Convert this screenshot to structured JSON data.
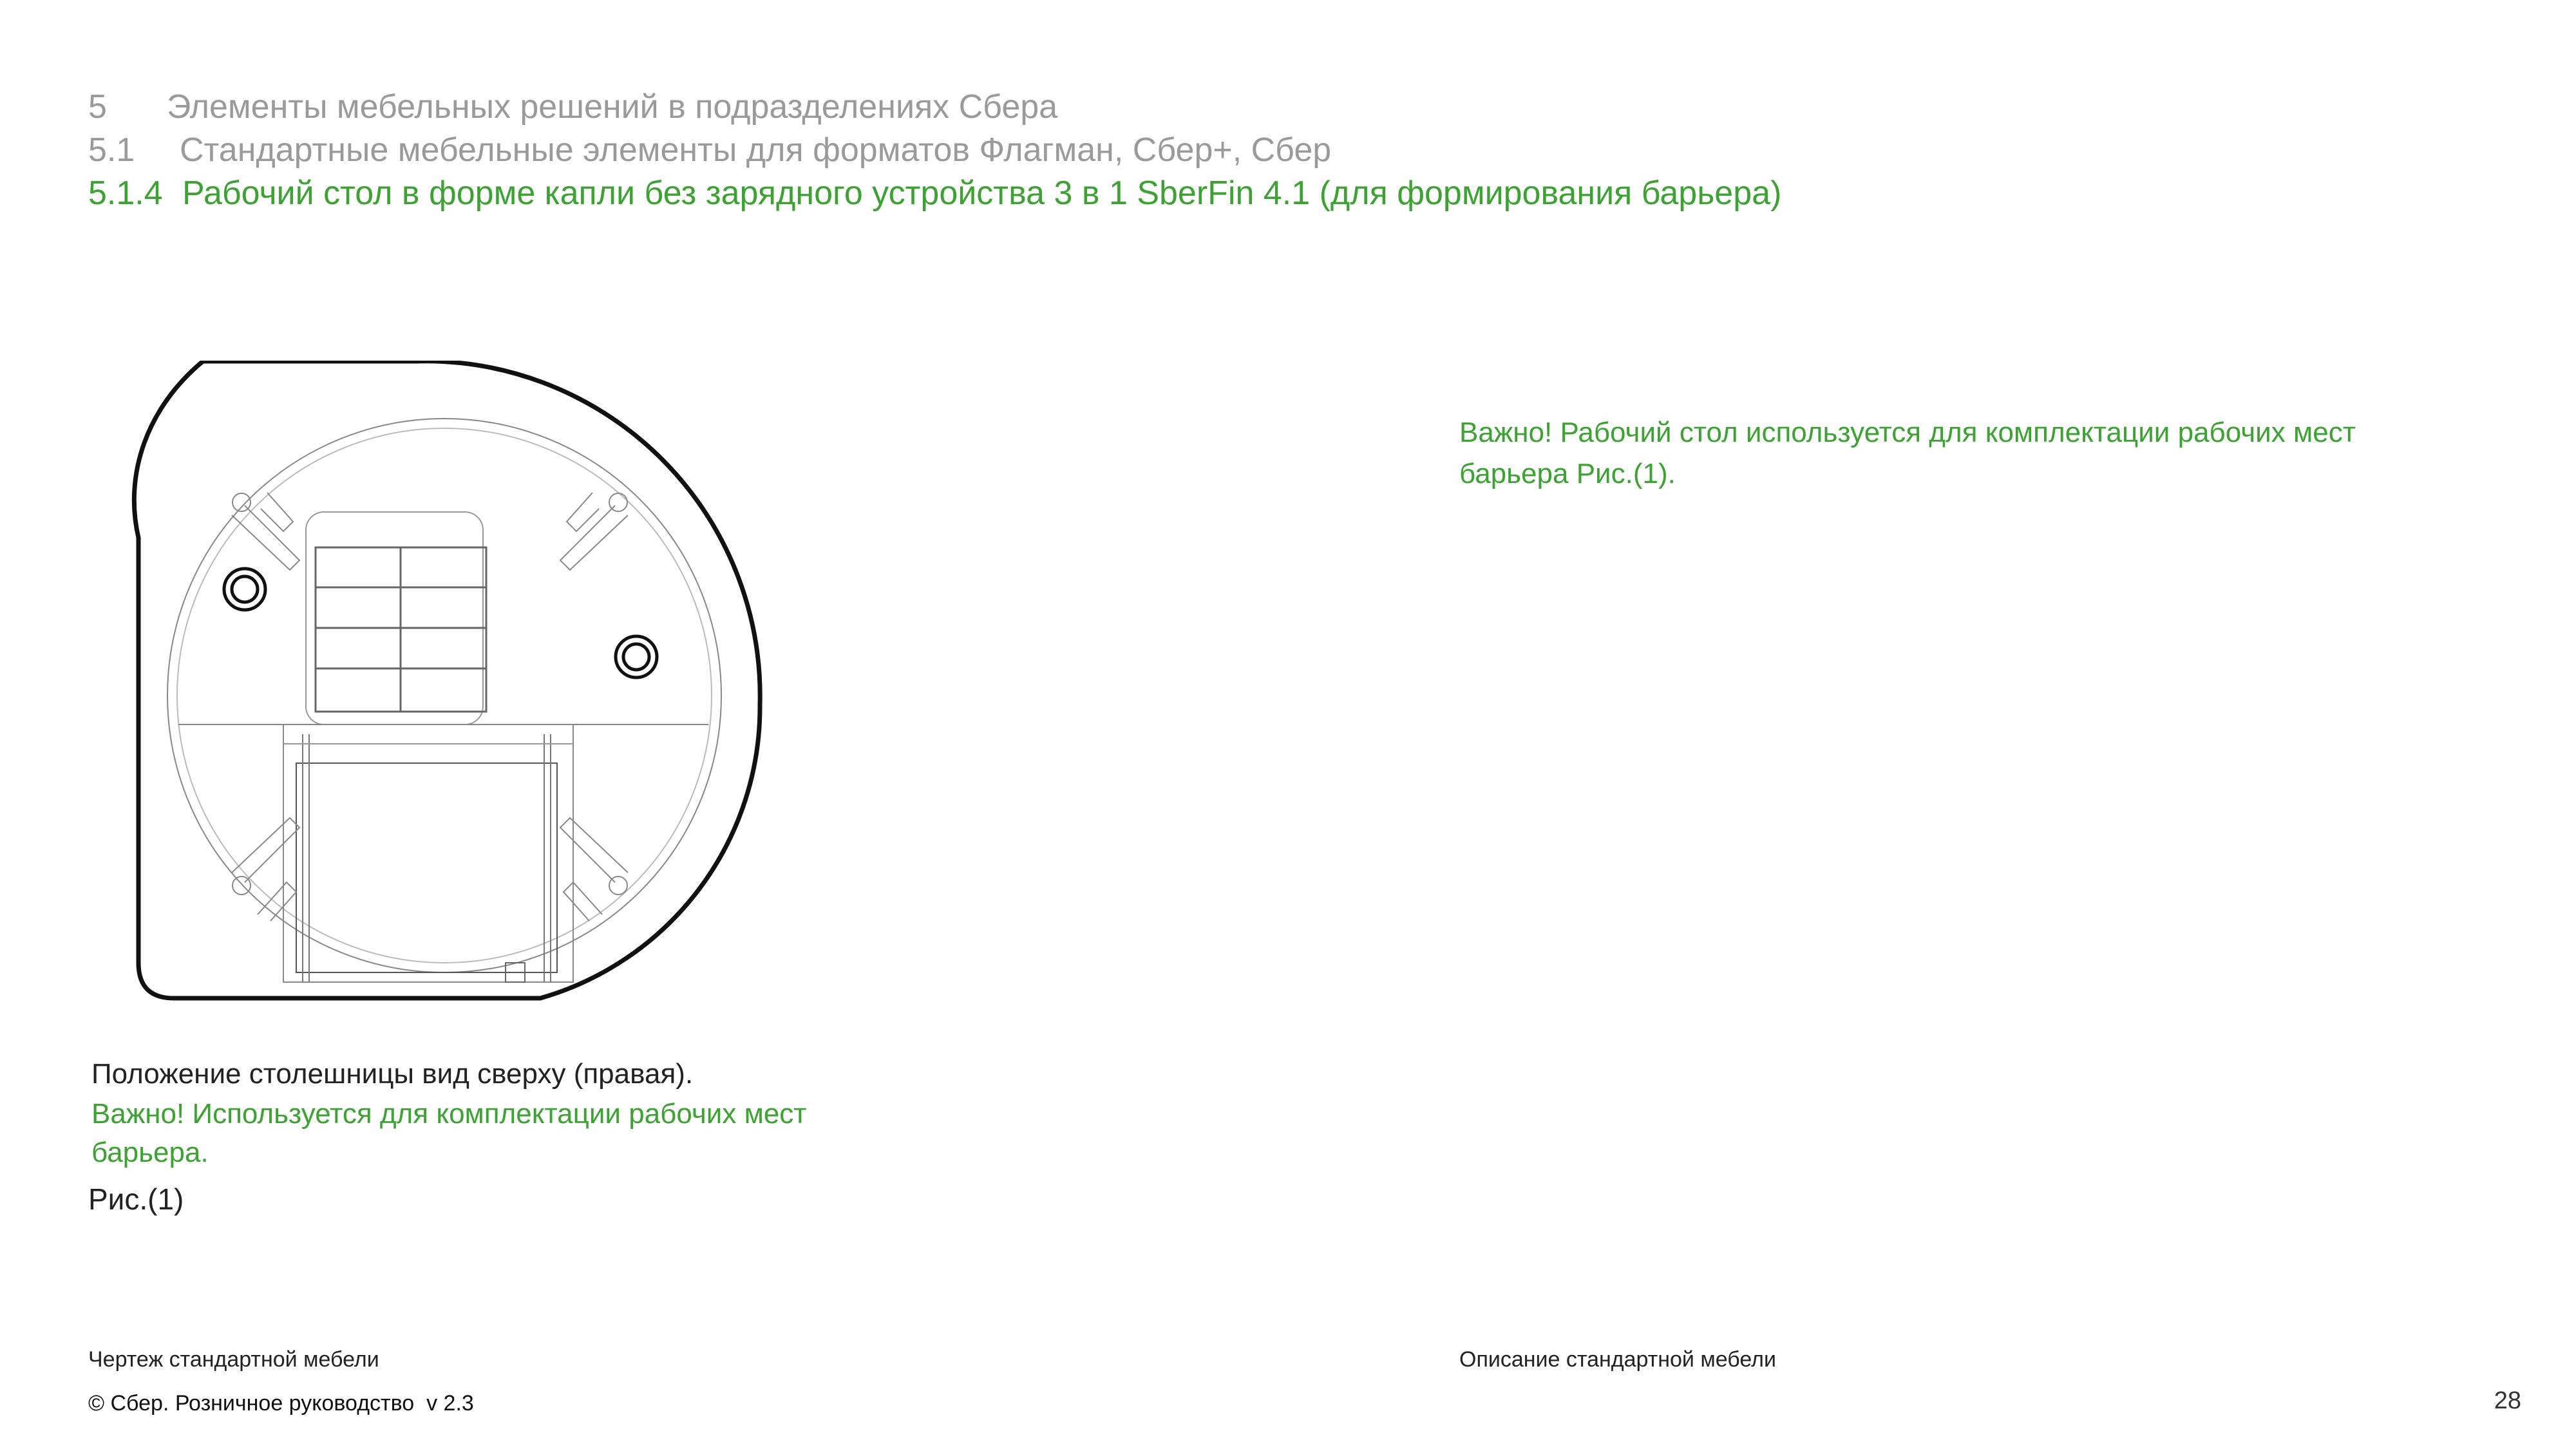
{
  "header": {
    "section": {
      "number": "5",
      "title": "Элементы мебельных решений в подразделениях Сбера"
    },
    "subsection": {
      "number": "5.1",
      "title": "Стандартные мебельные элементы для форматов Флагман, Сбер+, Сбер"
    },
    "item": {
      "number": "5.1.4",
      "title": "Рабочий стол в форме капли без зарядного устройства 3 в 1 SberFin 4.1 (для формирования барьера)"
    }
  },
  "figure": {
    "caption": "Положение столешницы вид сверху (правая).",
    "note": "Важно! Используется для комплектации рабочих мест барьера.",
    "label": "Рис.(1)"
  },
  "description": {
    "note": "Важно! Рабочий стол используется для комплектации рабочих мест барьера Рис.(1)."
  },
  "footer": {
    "left_label": "Чертеж стандартной мебели",
    "right_label": "Описание стандартной мебели",
    "copyright": "© Сбер. Розничное руководство  v 2.3",
    "page_number": "28"
  },
  "colors": {
    "accent_green": "#3da233",
    "muted_gray": "#9a9a9a",
    "text_dark": "#222222"
  }
}
